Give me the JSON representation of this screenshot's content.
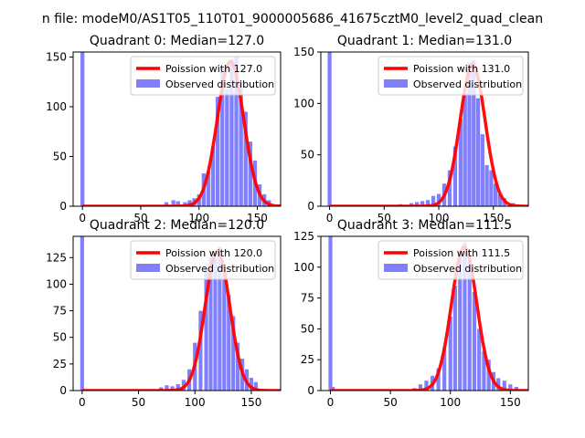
{
  "figure_title": "n file: modeM0/AS1T05_110T01_9000005686_41675cztM0_level2_quad_clean",
  "colors": {
    "poisson": "#ff0000",
    "observed": "#8080ff",
    "axis": "#000000",
    "legend_border": "#cccccc"
  },
  "legend_labels": {
    "poisson_prefix": "Poission with ",
    "observed": "Observed distribution"
  },
  "chart_data": [
    {
      "type": "bar",
      "title": "Quadrant 0: Median=127.0",
      "median": 127.0,
      "xlim": [
        -8,
        170
      ],
      "ylim": [
        0,
        155
      ],
      "xticks": [
        0,
        50,
        100,
        150
      ],
      "yticks": [
        0,
        50,
        100,
        150
      ],
      "bin_width": 3.4,
      "bins": [
        [
          0,
          155
        ],
        [
          72,
          4
        ],
        [
          78,
          6
        ],
        [
          82,
          5
        ],
        [
          88,
          4
        ],
        [
          92,
          6
        ],
        [
          96,
          8
        ],
        [
          100,
          12
        ],
        [
          104,
          33
        ],
        [
          108,
          35
        ],
        [
          112,
          60
        ],
        [
          116,
          110
        ],
        [
          120,
          140
        ],
        [
          124,
          118
        ],
        [
          128,
          148
        ],
        [
          132,
          150
        ],
        [
          136,
          125
        ],
        [
          140,
          95
        ],
        [
          144,
          65
        ],
        [
          148,
          46
        ],
        [
          152,
          22
        ],
        [
          156,
          12
        ],
        [
          160,
          6
        ]
      ],
      "legend": "Poission with 127.0"
    },
    {
      "type": "bar",
      "title": "Quadrant 1: Median=131.0",
      "median": 131.0,
      "xlim": [
        -8,
        182
      ],
      "ylim": [
        0,
        150
      ],
      "xticks": [
        0,
        50,
        100,
        150
      ],
      "yticks": [
        0,
        50,
        100,
        150
      ],
      "bin_width": 3.6,
      "bins": [
        [
          0,
          150
        ],
        [
          55,
          1
        ],
        [
          65,
          2
        ],
        [
          75,
          3
        ],
        [
          80,
          4
        ],
        [
          85,
          5
        ],
        [
          90,
          6
        ],
        [
          95,
          10
        ],
        [
          100,
          12
        ],
        [
          105,
          22
        ],
        [
          110,
          35
        ],
        [
          115,
          58
        ],
        [
          120,
          85
        ],
        [
          124,
          110
        ],
        [
          128,
          140
        ],
        [
          132,
          142
        ],
        [
          136,
          105
        ],
        [
          140,
          70
        ],
        [
          144,
          40
        ],
        [
          148,
          35
        ],
        [
          152,
          22
        ],
        [
          156,
          12
        ],
        [
          160,
          8
        ],
        [
          168,
          3
        ]
      ],
      "legend": "Poission with 131.0"
    },
    {
      "type": "bar",
      "title": "Quadrant 2: Median=120.0",
      "median": 120.0,
      "xlim": [
        -8,
        176
      ],
      "ylim": [
        0,
        145
      ],
      "xticks": [
        0,
        50,
        100,
        150
      ],
      "yticks": [
        0,
        25,
        50,
        75,
        100,
        125
      ],
      "bin_width": 3.4,
      "bins": [
        [
          0,
          145
        ],
        [
          70,
          3
        ],
        [
          75,
          5
        ],
        [
          80,
          4
        ],
        [
          85,
          6
        ],
        [
          90,
          10
        ],
        [
          95,
          20
        ],
        [
          100,
          45
        ],
        [
          105,
          75
        ],
        [
          110,
          115
        ],
        [
          114,
          125
        ],
        [
          118,
          125
        ],
        [
          122,
          135
        ],
        [
          126,
          110
        ],
        [
          130,
          90
        ],
        [
          134,
          70
        ],
        [
          138,
          45
        ],
        [
          142,
          30
        ],
        [
          146,
          20
        ],
        [
          150,
          12
        ],
        [
          154,
          8
        ]
      ],
      "legend": "Poission with 120.0"
    },
    {
      "type": "bar",
      "title": "Quadrant 3: Median=111.5",
      "median": 111.5,
      "xlim": [
        -8,
        165
      ],
      "ylim": [
        0,
        125
      ],
      "xticks": [
        0,
        50,
        100,
        150
      ],
      "yticks": [
        0,
        25,
        50,
        75,
        100,
        125
      ],
      "bin_width": 3.2,
      "bins": [
        [
          0,
          125
        ],
        [
          2,
          3
        ],
        [
          70,
          2
        ],
        [
          75,
          5
        ],
        [
          80,
          8
        ],
        [
          85,
          12
        ],
        [
          90,
          18
        ],
        [
          95,
          35
        ],
        [
          100,
          60
        ],
        [
          104,
          85
        ],
        [
          108,
          110
        ],
        [
          112,
          120
        ],
        [
          116,
          105
        ],
        [
          120,
          80
        ],
        [
          124,
          50
        ],
        [
          128,
          32
        ],
        [
          132,
          25
        ],
        [
          136,
          15
        ],
        [
          140,
          10
        ],
        [
          145,
          8
        ],
        [
          150,
          5
        ],
        [
          155,
          3
        ]
      ],
      "legend": "Poission with 111.5"
    }
  ]
}
